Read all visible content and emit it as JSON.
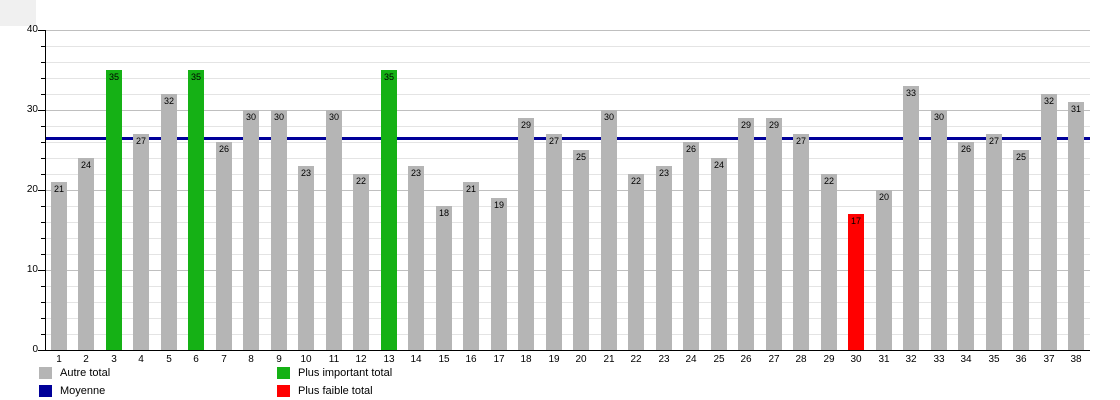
{
  "chart_data": {
    "type": "bar",
    "title": "",
    "xlabel": "",
    "ylabel": "",
    "categories": [
      1,
      2,
      3,
      4,
      5,
      6,
      7,
      8,
      9,
      10,
      11,
      12,
      13,
      14,
      15,
      16,
      17,
      18,
      19,
      20,
      21,
      22,
      23,
      24,
      25,
      26,
      27,
      28,
      29,
      30,
      31,
      32,
      33,
      34,
      35,
      36,
      37,
      38
    ],
    "values": [
      21,
      24,
      35,
      27,
      32,
      35,
      26,
      30,
      30,
      23,
      30,
      22,
      35,
      23,
      18,
      21,
      19,
      29,
      27,
      25,
      30,
      22,
      23,
      26,
      24,
      29,
      29,
      27,
      22,
      17,
      20,
      33,
      30,
      26,
      27,
      25,
      32,
      31
    ],
    "moyenne": 26.45,
    "ylim": [
      0,
      40
    ],
    "y_major_step": 10,
    "y_minor_step": 2,
    "y_tick_labels": [
      "0",
      "10",
      "20",
      "30",
      "40"
    ],
    "grid": "horizontal",
    "highlight_max_indices": [
      3,
      6,
      13
    ],
    "highlight_min_indices": [
      30
    ],
    "colors": {
      "autre": "#b5b5b5",
      "plus_important": "#15b115",
      "plus_faible": "#ff0000",
      "moyenne": "#000099",
      "grid_minor": "#e4e4e4",
      "grid_major": "#bfbfbf",
      "axis": "#000000"
    },
    "legend": [
      {
        "label": "Autre total",
        "color_key": "autre"
      },
      {
        "label": "Moyenne",
        "color_key": "moyenne"
      },
      {
        "label": "Plus important total",
        "color_key": "plus_important"
      },
      {
        "label": "Plus faible total",
        "color_key": "plus_faible"
      }
    ],
    "legend_position": "bottom"
  }
}
